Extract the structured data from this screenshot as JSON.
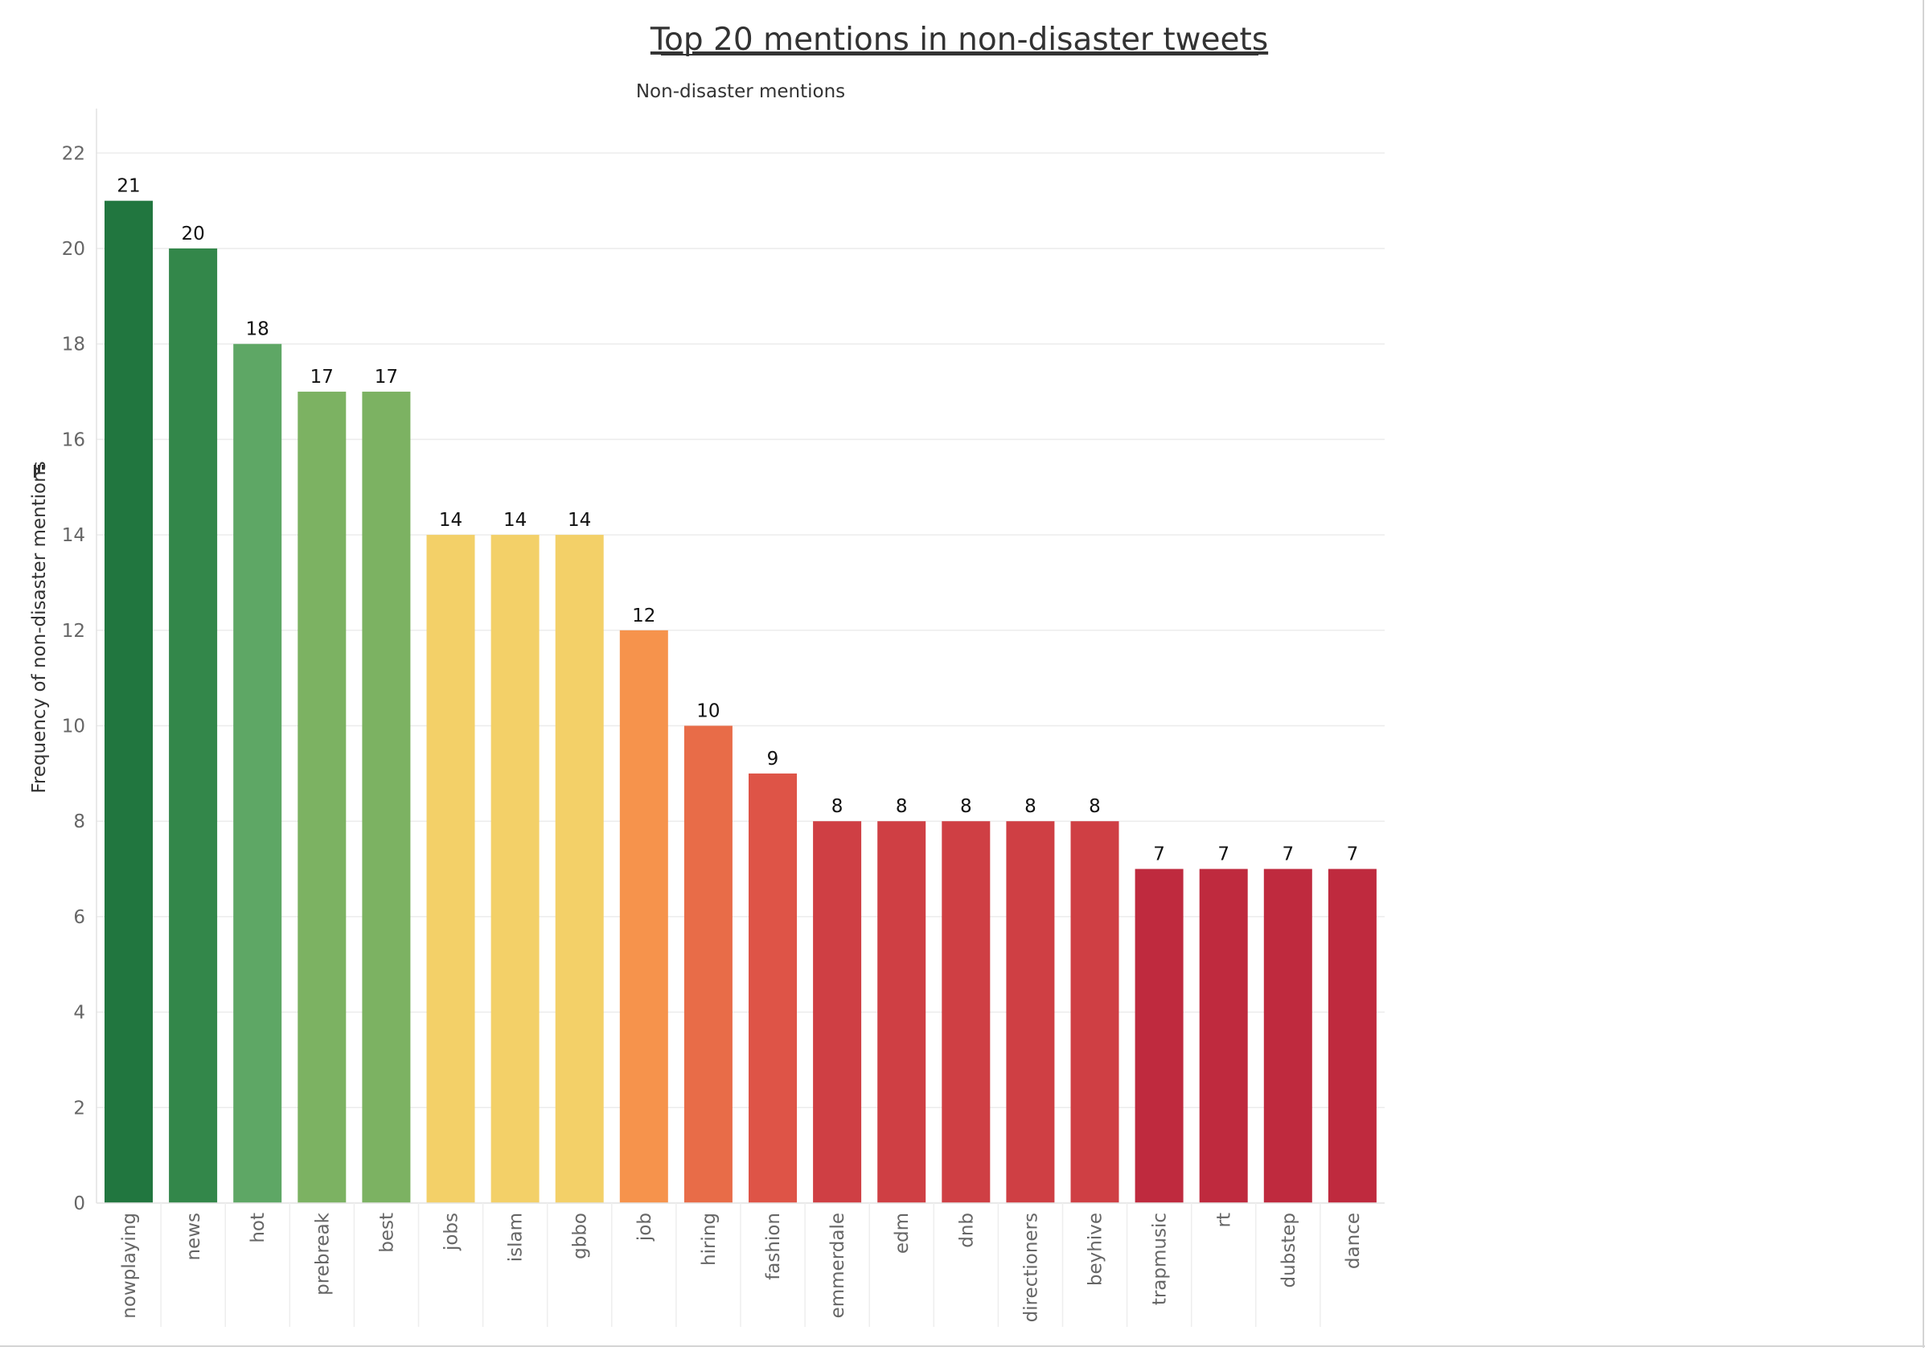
{
  "chart_data": {
    "type": "bar",
    "title": "Top 20 mentions in non-disaster tweets",
    "subtitle": "Non-disaster mentions",
    "xlabel": "",
    "ylabel": "Frequency of non-disaster mentions",
    "ylim": [
      0,
      23
    ],
    "yticks": [
      0,
      2,
      4,
      6,
      8,
      10,
      12,
      14,
      16,
      18,
      20,
      22
    ],
    "grid": true,
    "categories": [
      "nowplaying",
      "news",
      "hot",
      "prebreak",
      "best",
      "jobs",
      "islam",
      "gbbo",
      "job",
      "hiring",
      "fashion",
      "emmerdale",
      "edm",
      "dnb",
      "directioners",
      "beyhive",
      "trapmusic",
      "rt",
      "dubstep",
      "dance"
    ],
    "values": [
      21,
      20,
      18,
      17,
      17,
      14,
      14,
      14,
      12,
      10,
      9,
      8,
      8,
      8,
      8,
      8,
      7,
      7,
      7,
      7
    ],
    "colors": [
      "#21763f",
      "#33874a",
      "#5ea765",
      "#7cb262",
      "#7cb262",
      "#f3d068",
      "#f3d068",
      "#f3d068",
      "#f6934c",
      "#e86c48",
      "#de5447",
      "#cf3f44",
      "#cf3f44",
      "#cf3f44",
      "#cf3f44",
      "#cf3f44",
      "#bf2a3e",
      "#bf2a3e",
      "#bf2a3e",
      "#bf2a3e"
    ]
  }
}
